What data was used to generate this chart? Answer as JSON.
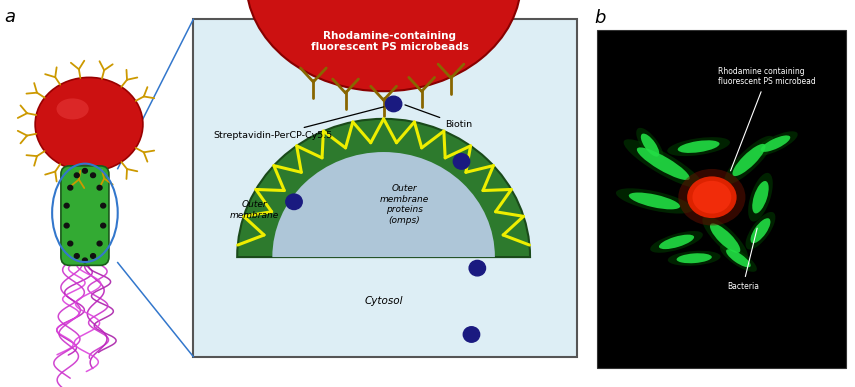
{
  "panel_a_label": "a",
  "panel_b_label": "b",
  "label_fontsize": 13,
  "bg_color": "#ffffff",
  "diagram_bg": "#ddeef5",
  "diagram_border": "#555555",
  "red_sphere_color": "#cc1111",
  "green_body_color": "#33aa33",
  "outer_membrane_color": "#2d7a2d",
  "inner_body_color": "#aec6d8",
  "yellow_stripe_color": "#eeee00",
  "biotin_color": "#1a1a80",
  "flagella_colors": [
    "#cc33cc",
    "#bb22bb",
    "#dd44dd",
    "#aa22aa",
    "#cc33cc"
  ],
  "text_rhodamine": "Rhodamine-containing\nfluorescent PS microbeads",
  "text_streptavidin": "Streptavidin-PerCP-Cy5.5",
  "text_biotin": "Biotin",
  "text_outer_membrane": "Outer\nmembrane",
  "text_outer_membrane_proteins": "Outer\nmembrane\nproteins\n(omps)",
  "text_cytosol": "Cytosol",
  "text_rhodamine_b": "Rhodamine containing\nfluorescent PS microbead",
  "text_bacteria": "Bacteria",
  "fluorescent_bg": "#000000",
  "fluorescent_green": "#22dd44",
  "fluorescent_red": "#dd2200"
}
